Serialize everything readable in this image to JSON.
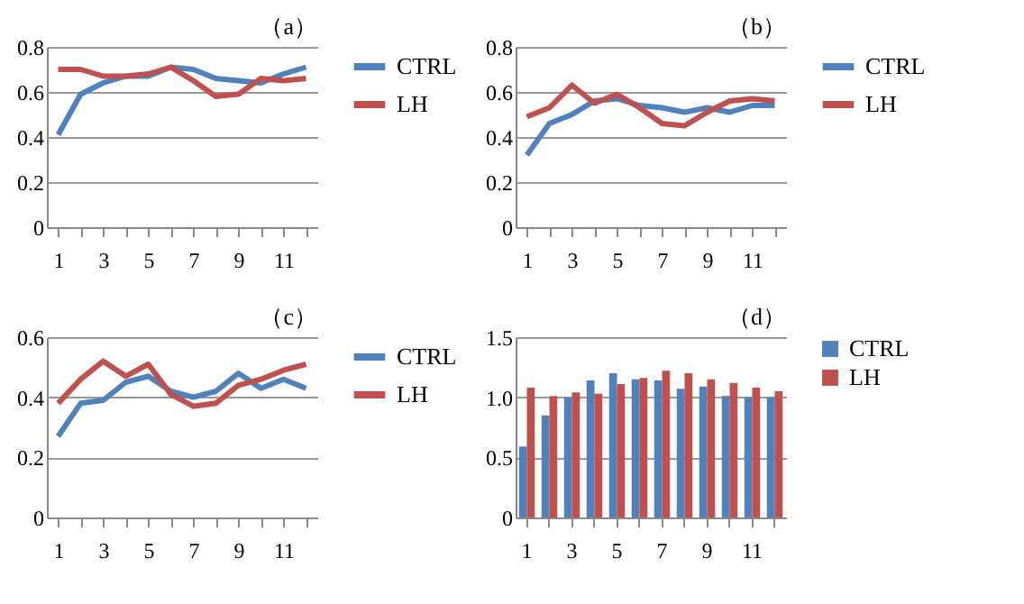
{
  "chart_data": [
    {
      "type": "line",
      "title": "（a）",
      "categories": [
        "1",
        null,
        "3",
        null,
        "5",
        null,
        "7",
        null,
        "9",
        null,
        "11",
        null
      ],
      "ylim": [
        0,
        0.8
      ],
      "yticks": [
        0,
        0.2,
        0.4,
        0.6,
        0.8
      ],
      "grid": "y",
      "legend": "right",
      "marker": "none",
      "series": [
        {
          "name": "CTRL",
          "color": "#4f81bd",
          "values": [
            0.41,
            0.59,
            0.64,
            0.67,
            0.67,
            0.71,
            0.7,
            0.66,
            0.65,
            0.64,
            0.68,
            0.71
          ]
        },
        {
          "name": "LH",
          "color": "#c0504d",
          "values": [
            0.7,
            0.7,
            0.67,
            0.67,
            0.68,
            0.71,
            0.65,
            0.58,
            0.59,
            0.66,
            0.65,
            0.66
          ]
        }
      ]
    },
    {
      "type": "line",
      "title": "（b）",
      "categories": [
        "1",
        null,
        "3",
        null,
        "5",
        null,
        "7",
        null,
        "9",
        null,
        "11",
        null
      ],
      "ylim": [
        0,
        0.8
      ],
      "yticks": [
        0,
        0.2,
        0.4,
        0.6,
        0.8
      ],
      "grid": "y",
      "legend": "right",
      "marker": "none",
      "series": [
        {
          "name": "CTRL",
          "color": "#4f81bd",
          "values": [
            0.32,
            0.46,
            0.5,
            0.56,
            0.57,
            0.54,
            0.53,
            0.51,
            0.53,
            0.51,
            0.54,
            0.54
          ]
        },
        {
          "name": "LH",
          "color": "#c0504d",
          "values": [
            0.49,
            0.53,
            0.63,
            0.55,
            0.59,
            0.53,
            0.46,
            0.45,
            0.51,
            0.56,
            0.57,
            0.56
          ]
        }
      ]
    },
    {
      "type": "line",
      "title": "（c）",
      "categories": [
        "1",
        null,
        "3",
        null,
        "5",
        null,
        "7",
        null,
        "9",
        null,
        "11",
        null
      ],
      "ylim": [
        0,
        0.6
      ],
      "yticks": [
        0,
        0.2,
        0.4,
        0.6
      ],
      "grid": "y",
      "legend": "right",
      "marker": "none",
      "series": [
        {
          "name": "CTRL",
          "color": "#4f81bd",
          "values": [
            0.27,
            0.38,
            0.39,
            0.45,
            0.47,
            0.42,
            0.4,
            0.42,
            0.48,
            0.43,
            0.46,
            0.43
          ]
        },
        {
          "name": "LH",
          "color": "#c0504d",
          "values": [
            0.38,
            0.46,
            0.52,
            0.47,
            0.51,
            0.41,
            0.37,
            0.38,
            0.44,
            0.46,
            0.49,
            0.51
          ]
        }
      ]
    },
    {
      "type": "bar",
      "title": "（d）",
      "categories": [
        "1",
        null,
        "3",
        null,
        "5",
        null,
        "7",
        null,
        "9",
        null,
        "11",
        null
      ],
      "ylim": [
        0,
        1.5
      ],
      "yticks": [
        0,
        0.5,
        {
          "value": 1,
          "label": "1.0"
        },
        1.5
      ],
      "grid": "y",
      "legend": "right",
      "series": [
        {
          "name": "CTRL",
          "color": "#4f81bd",
          "values": [
            0.59,
            0.85,
            1.0,
            1.14,
            1.2,
            1.15,
            1.14,
            1.07,
            1.09,
            1.01,
            1.0,
            1.0
          ]
        },
        {
          "name": "LH",
          "color": "#c0504d",
          "values": [
            1.08,
            1.01,
            1.04,
            1.03,
            1.11,
            1.16,
            1.22,
            1.2,
            1.15,
            1.12,
            1.08,
            1.05
          ]
        }
      ]
    }
  ]
}
